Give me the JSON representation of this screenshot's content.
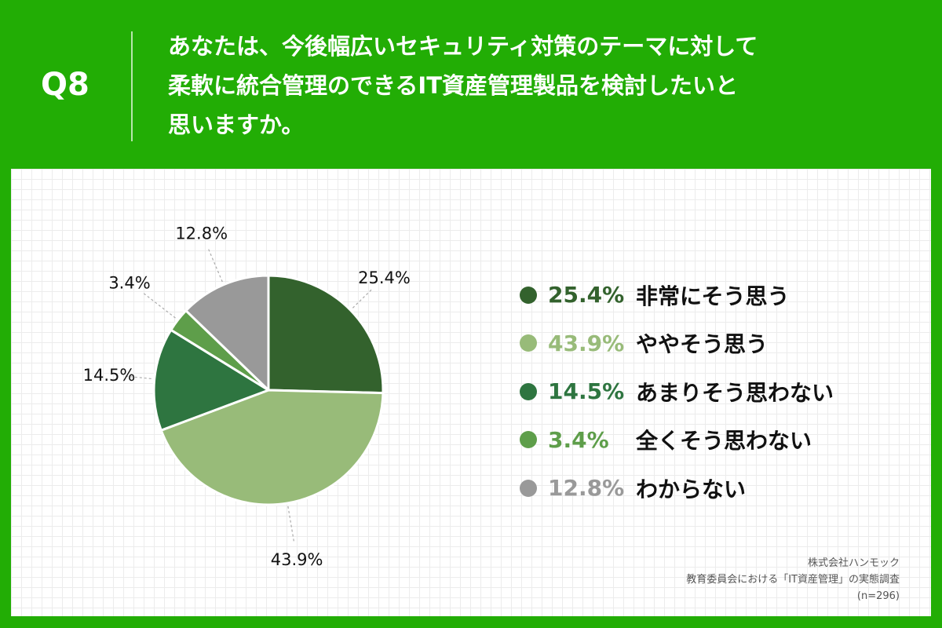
{
  "header": {
    "q_number": "Q8",
    "question": "あなたは、今後幅広いセキュリティ対策のテーマに対して\n柔軟に統合管理のできるIT資産管理製品を検討したいと\n思いますか。"
  },
  "colors": {
    "header_bg": "#22ad05",
    "series": [
      "#33622d",
      "#98bb79",
      "#2e7540",
      "#5e9e4a",
      "#999999"
    ]
  },
  "chart_data": {
    "type": "pie",
    "start": "12 o'clock",
    "direction": "clockwise",
    "unit": "%",
    "categories": [
      "非常にそう思う",
      "ややそう思う",
      "あまりそう思わない",
      "全くそう思わない",
      "わからない"
    ],
    "values": [
      25.4,
      43.9,
      14.5,
      3.4,
      12.8
    ],
    "data_labels": [
      "25.4%",
      "43.9%",
      "14.5%",
      "3.4%",
      "12.8%"
    ],
    "legend_placement": "right"
  },
  "legend": {
    "items": [
      {
        "pct": "25.4%",
        "label": "非常にそう思う"
      },
      {
        "pct": "43.9%",
        "label": "ややそう思う"
      },
      {
        "pct": "14.5%",
        "label": "あまりそう思わない"
      },
      {
        "pct": "3.4%",
        "label": "全くそう思わない"
      },
      {
        "pct": "12.8%",
        "label": "わからない"
      }
    ]
  },
  "source": {
    "line1": "株式会社ハンモック",
    "line2": "教育委員会における「IT資産管理」の実態調査",
    "line3": "(n=296)"
  }
}
